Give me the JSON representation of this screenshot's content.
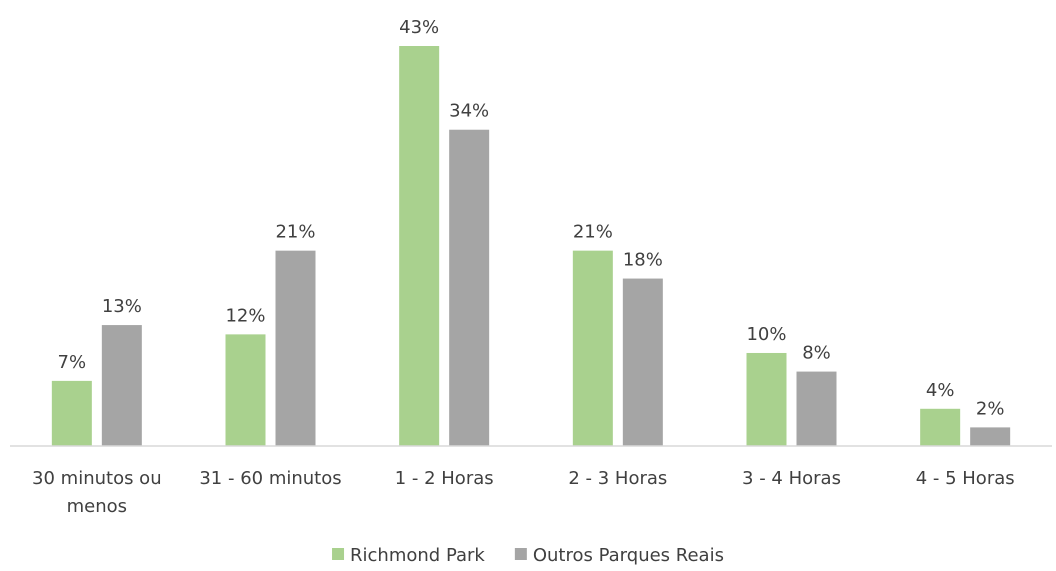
{
  "chart_data": {
    "type": "bar",
    "categories": [
      [
        "30 minutos ou",
        "menos"
      ],
      [
        "31 - 60 minutos"
      ],
      [
        "1 - 2 Horas"
      ],
      [
        "2 - 3 Horas"
      ],
      [
        "3 - 4 Horas"
      ],
      [
        "4 - 5 Horas"
      ]
    ],
    "series": [
      {
        "name": "Richmond Park",
        "color": "#a9d18e",
        "values": [
          7,
          12,
          43,
          21,
          10,
          4
        ],
        "labels": [
          "7%",
          "12%",
          "43%",
          "21%",
          "10%",
          "4%"
        ]
      },
      {
        "name": "Outros Parques Reais",
        "color": "#a5a5a5",
        "values": [
          13,
          21,
          34,
          18,
          8,
          2
        ],
        "labels": [
          "13%",
          "21%",
          "34%",
          "18%",
          "8%",
          "2%"
        ]
      }
    ],
    "ylim": [
      0,
      43
    ],
    "value_format": "percent",
    "legend_position": "bottom",
    "grid": false
  }
}
